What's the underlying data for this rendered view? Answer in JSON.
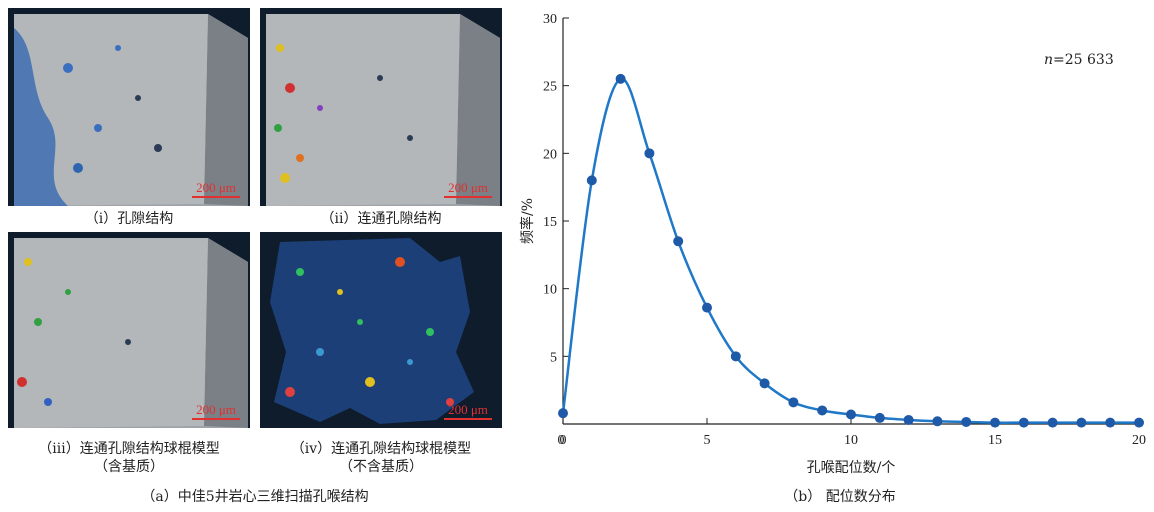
{
  "images": [
    {
      "caption": "（ⅰ）孔隙结构",
      "scale": "200 μm"
    },
    {
      "caption": "（ⅱ）连通孔隙结构",
      "scale": "200 μm"
    },
    {
      "caption": "（ⅲ）连通孔隙结构球棍模型",
      "caption2": "（含基质）",
      "scale": "200 μm"
    },
    {
      "caption": "（ⅳ）连通孔隙结构球棍模型",
      "caption2": "（不含基质）",
      "scale": "200 μm"
    }
  ],
  "caption_a": "（a）中佳5井岩心三维扫描孔喉结构",
  "caption_b": "（b） 配位数分布",
  "chart_data": {
    "type": "line",
    "xlabel": "孔喉配位数/个",
    "ylabel": "频率/%",
    "annotation": "n=25 633",
    "xlim": [
      0,
      20
    ],
    "ylim": [
      0,
      30
    ],
    "xticks": [
      0,
      5,
      10,
      15,
      20
    ],
    "yticks": [
      5,
      10,
      15,
      20,
      25,
      30
    ],
    "line_color": "#1f78c8",
    "marker_color": "#1f5aa8",
    "x": [
      0,
      1,
      2,
      3,
      4,
      5,
      6,
      7,
      8,
      9,
      10,
      11,
      12,
      13,
      14,
      15,
      16,
      17,
      18,
      19,
      20
    ],
    "y": [
      0.8,
      18.0,
      25.5,
      20.0,
      13.5,
      8.6,
      5.0,
      3.0,
      1.6,
      1.0,
      0.7,
      0.45,
      0.3,
      0.2,
      0.15,
      0.1,
      0.1,
      0.1,
      0.1,
      0.1,
      0.1
    ]
  }
}
